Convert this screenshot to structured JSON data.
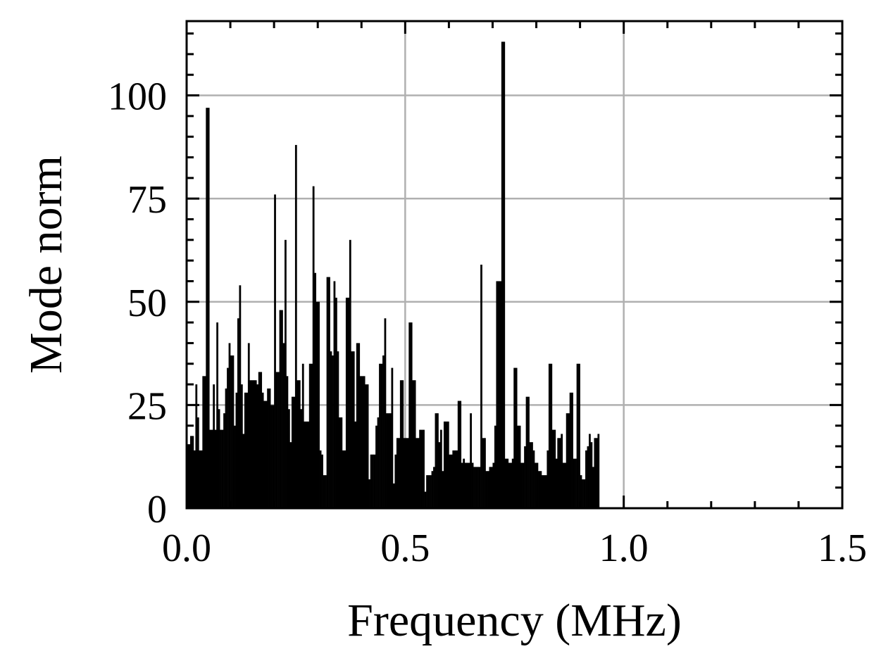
{
  "chart_data": {
    "type": "bar",
    "xlabel": "Frequency (MHz)",
    "ylabel": "Mode norm",
    "xlim": [
      0.0,
      1.5
    ],
    "ylim": [
      0,
      118
    ],
    "x_ticks": [
      0.0,
      0.5,
      1.0,
      1.5
    ],
    "x_tick_labels": [
      "0.0",
      "0.5",
      "1.0",
      "1.5"
    ],
    "y_ticks": [
      0,
      25,
      50,
      75,
      100
    ],
    "y_tick_labels": [
      "0",
      "25",
      "50",
      "75",
      "100"
    ],
    "grid": true,
    "bar_color": "#000000",
    "grid_color": "#b0b0b0",
    "bins": {
      "start": 0.0,
      "width": 0.004,
      "values": [
        15.5,
        15.5,
        17.5,
        17.5,
        14,
        30,
        22,
        14,
        14,
        32,
        32,
        97,
        97,
        19,
        19,
        30,
        19,
        45,
        24,
        19,
        19,
        23,
        29,
        34,
        40,
        37,
        37,
        20,
        28,
        46,
        54,
        30,
        18,
        28,
        28,
        40,
        31,
        31,
        31,
        31,
        30,
        33,
        33,
        28,
        26,
        26,
        29,
        29,
        25,
        25,
        76,
        33,
        33,
        48,
        48,
        40,
        65,
        32,
        24,
        16,
        27,
        27,
        88,
        31,
        31,
        24,
        35,
        21,
        21,
        21,
        35,
        35,
        78,
        57,
        50,
        50,
        14,
        13,
        8,
        8,
        56,
        56,
        38,
        37,
        55,
        51,
        38,
        22,
        22,
        14,
        14,
        51,
        51,
        65,
        38,
        38,
        21,
        40,
        40,
        32,
        32,
        32,
        30,
        30,
        7,
        13,
        13,
        13,
        20,
        22,
        35,
        35,
        37,
        46,
        23,
        23,
        23,
        34,
        6,
        13,
        17,
        17,
        31,
        31,
        17,
        17,
        17,
        45,
        45,
        31,
        31,
        17,
        17,
        19,
        19,
        19,
        4,
        8,
        8,
        8,
        9,
        10,
        23,
        23,
        16,
        19,
        9,
        21,
        21,
        21,
        13,
        13,
        14,
        14,
        14,
        26,
        26,
        11,
        12,
        11,
        11,
        11,
        23,
        11,
        10,
        10,
        10,
        10,
        59,
        17,
        17,
        9,
        9,
        10,
        10,
        11,
        20,
        55,
        55,
        55,
        113,
        113,
        12,
        12,
        11,
        11,
        12,
        34,
        34,
        20,
        20,
        11,
        11,
        15,
        27,
        27,
        16,
        16,
        14,
        11,
        11,
        9,
        9,
        8,
        8,
        8,
        14,
        35,
        35,
        19,
        19,
        12,
        17,
        17,
        18,
        11,
        11,
        23,
        23,
        28,
        28,
        12,
        12,
        35,
        35,
        8,
        7,
        7,
        14,
        15,
        18,
        16,
        10,
        17,
        17,
        18
      ]
    }
  }
}
